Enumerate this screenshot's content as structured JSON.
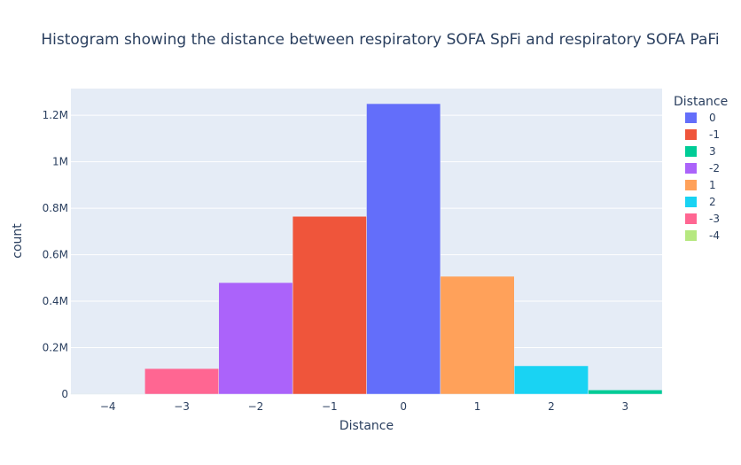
{
  "chart_data": {
    "type": "bar",
    "title": "Histogram showing the distance between respiratory SOFA SpFi and respiratory SOFA PaFi",
    "xlabel": "Distance",
    "ylabel": "count",
    "x_ticks": [
      "−4",
      "−3",
      "−2",
      "−1",
      "0",
      "1",
      "2",
      "3"
    ],
    "y_ticks": [
      {
        "value": 0,
        "label": "0"
      },
      {
        "value": 200000,
        "label": "0.2M"
      },
      {
        "value": 400000,
        "label": "0.4M"
      },
      {
        "value": 600000,
        "label": "0.6M"
      },
      {
        "value": 800000,
        "label": "0.8M"
      },
      {
        "value": 1000000,
        "label": "1M"
      },
      {
        "value": 1200000,
        "label": "1.2M"
      }
    ],
    "xlim": [
      -4.5,
      3.5
    ],
    "ylim": [
      0,
      1315000
    ],
    "grid": true,
    "legend_title": "Distance",
    "legend_position": "right",
    "series": [
      {
        "name": "0",
        "x": 0,
        "value": 1250000,
        "color": "#636efa"
      },
      {
        "name": "-1",
        "x": -1,
        "value": 765000,
        "color": "#ef553b"
      },
      {
        "name": "3",
        "x": 3,
        "value": 18000,
        "color": "#00cc96"
      },
      {
        "name": "-2",
        "x": -2,
        "value": 480000,
        "color": "#ab63fa"
      },
      {
        "name": "1",
        "x": 1,
        "value": 507000,
        "color": "#ffa15a"
      },
      {
        "name": "2",
        "x": 2,
        "value": 122000,
        "color": "#19d3f3"
      },
      {
        "name": "-3",
        "x": -3,
        "value": 110000,
        "color": "#ff6692"
      },
      {
        "name": "-4",
        "x": -4,
        "value": 2000,
        "color": "#b6e880"
      }
    ]
  }
}
